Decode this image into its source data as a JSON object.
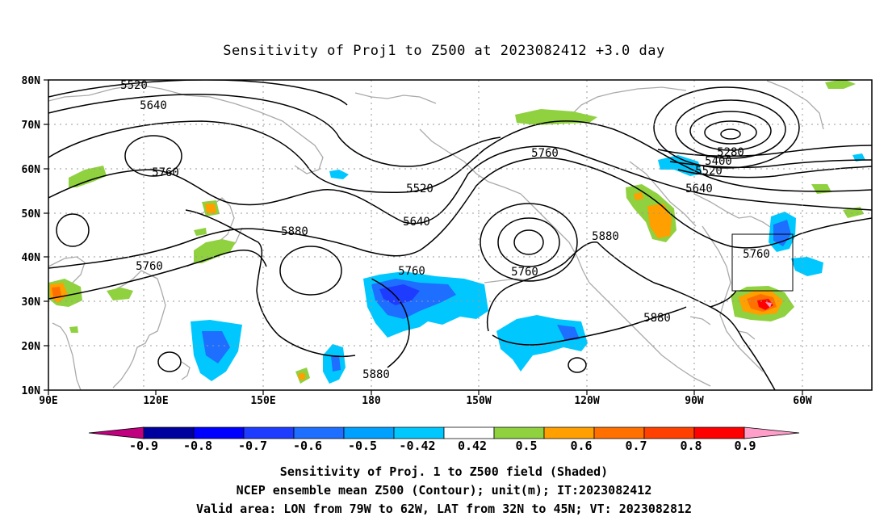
{
  "title": "Sensitivity of Proj1 to Z500 at 2023082412 +3.0 day",
  "lat_labels": [
    "80N",
    "70N",
    "60N",
    "50N",
    "40N",
    "30N",
    "20N",
    "10N"
  ],
  "lon_labels": [
    "90E",
    "120E",
    "150E",
    "180",
    "150W",
    "120W",
    "90W",
    "60W"
  ],
  "contour_labels": [
    "5520",
    "5640",
    "5760",
    "5520",
    "5640",
    "5880",
    "5760",
    "5760",
    "5880",
    "5760",
    "5760",
    "5880",
    "5280",
    "5400",
    "5520",
    "5640",
    "5760",
    "5880"
  ],
  "colorbar": {
    "colors": [
      "#c0007f",
      "#00009e",
      "#0000ff",
      "#1e3cff",
      "#1e6eff",
      "#00a0ff",
      "#00c8ff",
      "#ffffff",
      "#8fd13f",
      "#ffa000",
      "#ff7000",
      "#ff4000",
      "#ff0000",
      "#ff9ec8"
    ],
    "tick_labels": [
      "-0.9",
      "-0.8",
      "-0.7",
      "-0.6",
      "-0.5",
      "-0.42",
      "0.42",
      "0.5",
      "0.6",
      "0.7",
      "0.8",
      "0.9"
    ]
  },
  "caption": {
    "line1": "Sensitivity of Proj. 1 to Z500 field (Shaded)",
    "line2": "NCEP ensemble mean Z500 (Contour); unit(m); IT:2023082412",
    "line3": "Valid area: LON from 79W to 62W, LAT from 32N to 45N; VT: 2023082812"
  }
}
